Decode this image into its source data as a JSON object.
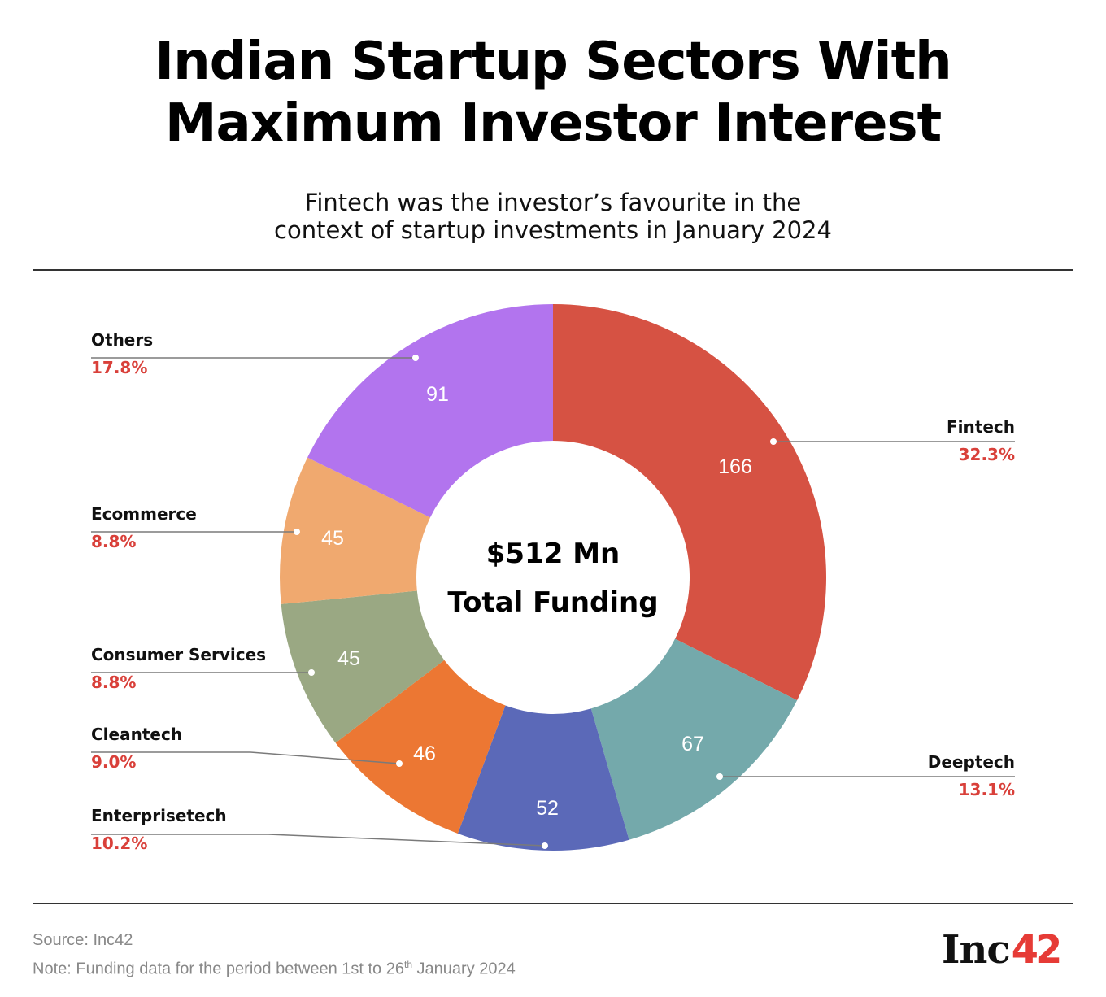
{
  "header": {
    "title_line1": "Indian Startup Sectors With",
    "title_line2": "Maximum Investor Interest",
    "subtitle_line1": "Fintech was the investor’s favourite in the",
    "subtitle_line2": "context of startup investments in January 2024"
  },
  "center": {
    "amount": "$512 Mn",
    "caption": "Total Funding"
  },
  "footer": {
    "source": "Source: Inc42",
    "note_prefix": "Note: Funding data for the period between 1st to 26",
    "note_sup": "th",
    "note_suffix": " January 2024"
  },
  "logo": {
    "text": "Inc",
    "number": "42",
    "accent_color": "#e63b36"
  },
  "colors": {
    "percent_label": "#d9403a",
    "leader_line": "#7a7a7a"
  },
  "chart_data": {
    "type": "pie",
    "variant": "donut",
    "title": "Indian Startup Sectors With Maximum Investor Interest",
    "subtitle": "Fintech was the investor’s favourite in the context of startup investments in January 2024",
    "unit": "$ Mn",
    "total": 512,
    "total_label": "$512 Mn Total Funding",
    "categories": [
      "Fintech",
      "Deeptech",
      "Enterprisetech",
      "Cleantech",
      "Consumer Services",
      "Ecommerce",
      "Others"
    ],
    "values": [
      166,
      67,
      52,
      46,
      45,
      45,
      91
    ],
    "percentages": [
      "32.3%",
      "13.1%",
      "10.2%",
      "9.0%",
      "8.8%",
      "8.8%",
      "17.8%"
    ],
    "colors": [
      "#d65243",
      "#74a9ab",
      "#5b69b8",
      "#ec7733",
      "#9aa883",
      "#f0a96f",
      "#b274ee"
    ],
    "start_angle": "12 o'clock, clockwise",
    "legend_position": "callout labels with leader lines"
  },
  "labels": [
    {
      "name": "Fintech",
      "pct": "32.3%"
    },
    {
      "name": "Deeptech",
      "pct": "13.1%"
    },
    {
      "name": "Enterprisetech",
      "pct": "10.2%"
    },
    {
      "name": "Cleantech",
      "pct": "9.0%"
    },
    {
      "name": "Consumer Services",
      "pct": "8.8%"
    },
    {
      "name": "Ecommerce",
      "pct": "8.8%"
    },
    {
      "name": "Others",
      "pct": "17.8%"
    }
  ]
}
